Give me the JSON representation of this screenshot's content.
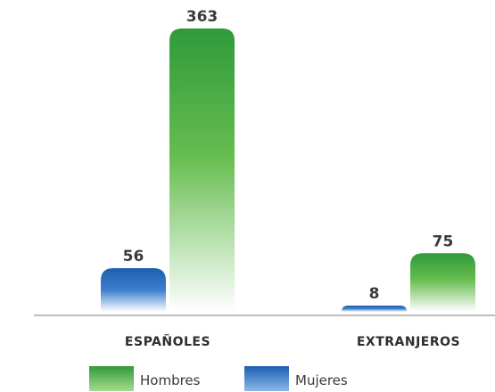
{
  "chart_data": {
    "type": "bar",
    "categories": [
      "ESPAÑOLES",
      "EXTRANJEROS"
    ],
    "series": [
      {
        "name": "Mujeres",
        "values": [
          56,
          8
        ],
        "color": "#1a64b8"
      },
      {
        "name": "Hombres",
        "values": [
          363,
          75
        ],
        "color": "#2f9a3a"
      }
    ],
    "ylim": [
      0,
      363
    ],
    "grid": false,
    "legend": "bottom"
  }
}
